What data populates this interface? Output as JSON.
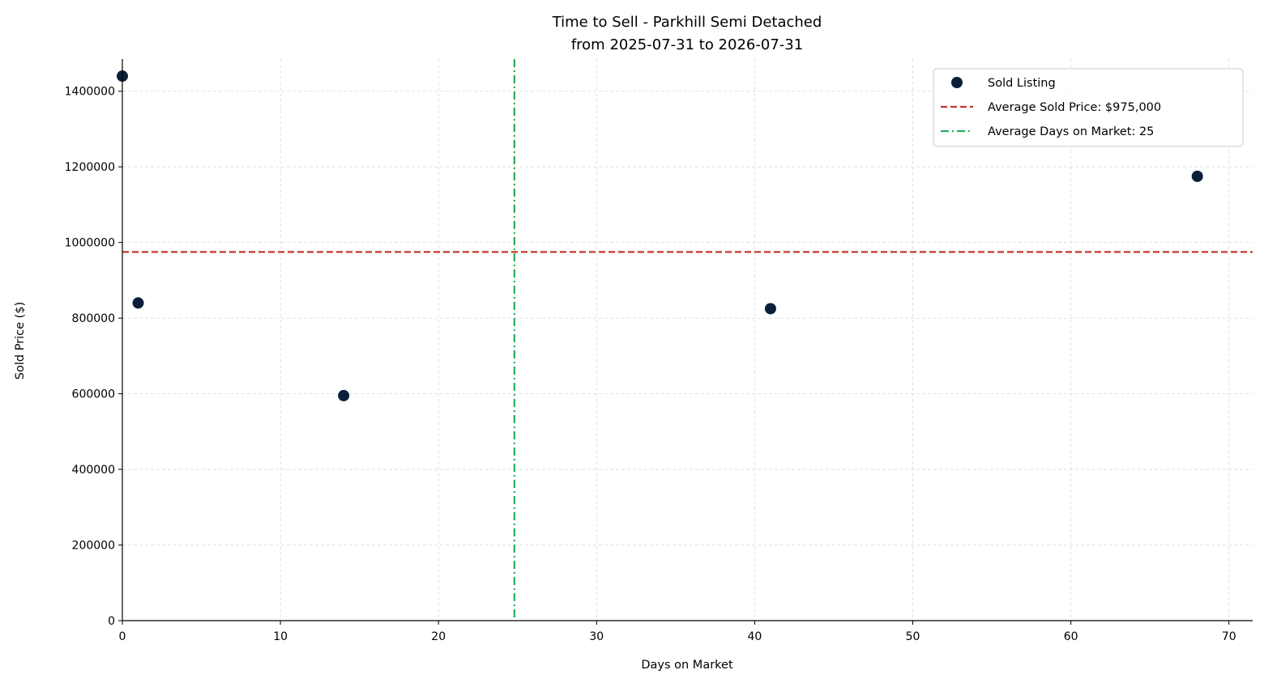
{
  "chart_data": {
    "type": "scatter",
    "title_line1": "Time to Sell - Parkhill Semi Detached",
    "title_line2": "from 2025-07-31 to 2026-07-31",
    "xlabel": "Days on Market",
    "ylabel": "Sold Price ($)",
    "xlim": [
      0,
      71.5
    ],
    "ylim": [
      0,
      1485000
    ],
    "xticks": [
      0,
      10,
      20,
      30,
      40,
      50,
      60,
      70
    ],
    "yticks": [
      0,
      200000,
      400000,
      600000,
      800000,
      1000000,
      1200000,
      1400000
    ],
    "grid": true,
    "legend_position": "top-right",
    "series": [
      {
        "name": "Sold Listing",
        "color": "#0b1f3a",
        "points": [
          {
            "x": 0,
            "y": 1440000
          },
          {
            "x": 1,
            "y": 840000
          },
          {
            "x": 14,
            "y": 595000
          },
          {
            "x": 41,
            "y": 825000
          },
          {
            "x": 68,
            "y": 1175000
          }
        ]
      }
    ],
    "reference_lines": [
      {
        "orientation": "horizontal",
        "value": 975000,
        "label": "Average Sold Price: $975,000",
        "color": "#c0392b",
        "style": "dashed"
      },
      {
        "orientation": "vertical",
        "value": 24.8,
        "label": "Average Days on Market: 25",
        "color": "#27ae60",
        "style": "dashdot"
      }
    ]
  }
}
